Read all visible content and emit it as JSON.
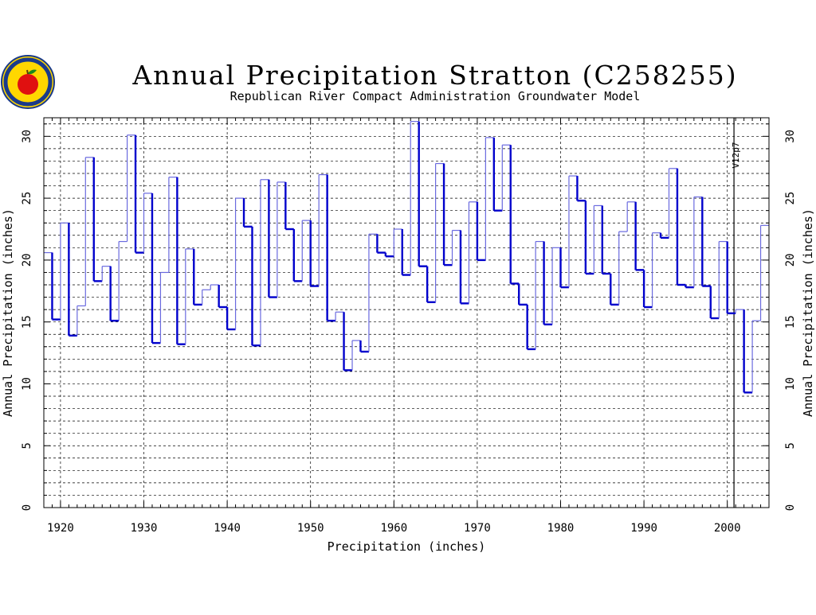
{
  "chart_data": {
    "type": "line",
    "step": true,
    "title": "Annual Precipitation Stratton (C258255)",
    "subtitle": "Republican River Compact Administration Groundwater Model",
    "xlabel": "Precipitation (inches)",
    "ylabel_left": "Annual Precipitation (inches)",
    "ylabel_right": "Annual Precipitation (inches)",
    "annotation": "V12p7",
    "xlim": [
      1918,
      2005
    ],
    "ylim": [
      0,
      31.5
    ],
    "x_ticks": [
      1920,
      1930,
      1940,
      1950,
      1960,
      1970,
      1980,
      1990,
      2000
    ],
    "y_ticks": [
      0,
      5,
      10,
      15,
      20,
      25,
      30
    ],
    "grid": true,
    "colors": {
      "thin_line": "#6a6adf",
      "thick_line": "#0000cc",
      "grid": "#000000",
      "logo_fill": "#ffd700",
      "logo_ring": "#1a3a8a",
      "apple": "#e01010"
    },
    "series": [
      {
        "x": [
          1918,
          1919,
          1920,
          1921,
          1922,
          1923,
          1924,
          1925,
          1926,
          1927,
          1928,
          1929,
          1930,
          1931,
          1932,
          1933,
          1934,
          1935,
          1936,
          1937,
          1938,
          1939,
          1940,
          1941,
          1942,
          1943,
          1944,
          1945,
          1946,
          1947,
          1948,
          1949,
          1950,
          1951,
          1952,
          1953,
          1954,
          1955,
          1956,
          1957,
          1958,
          1959,
          1960,
          1961,
          1962,
          1963,
          1964,
          1965,
          1966,
          1967,
          1968,
          1969,
          1970,
          1971,
          1972,
          1973,
          1974,
          1975,
          1976,
          1977,
          1978,
          1979,
          1980,
          1981,
          1982,
          1983,
          1984,
          1985,
          1986,
          1987,
          1988,
          1989,
          1990,
          1991,
          1992,
          1993,
          1994,
          1995,
          1996,
          1997,
          1998,
          1999,
          2000,
          2001,
          2002,
          2003,
          2004
        ],
        "values": [
          20.6,
          15.2,
          23.0,
          13.9,
          16.3,
          28.3,
          18.3,
          19.5,
          15.1,
          21.5,
          30.1,
          20.6,
          25.4,
          13.3,
          19.0,
          26.7,
          13.2,
          20.9,
          16.4,
          17.6,
          18.0,
          16.2,
          14.4,
          25.0,
          22.7,
          13.1,
          26.5,
          17.0,
          26.3,
          22.5,
          18.3,
          23.2,
          17.9,
          26.9,
          15.1,
          15.8,
          11.1,
          13.5,
          12.6,
          22.1,
          20.6,
          20.3,
          22.5,
          18.8,
          31.2,
          19.5,
          16.6,
          27.8,
          19.6,
          22.4,
          16.5,
          24.7,
          20.0,
          29.9,
          24.0,
          29.3,
          18.1,
          16.4,
          12.8,
          21.5,
          14.8,
          21.0,
          17.8,
          26.8,
          24.8,
          18.9,
          24.4,
          18.9,
          16.4,
          22.3,
          24.7,
          19.2,
          16.2,
          22.2,
          21.8,
          27.4,
          18.0,
          17.8,
          25.1,
          17.9,
          15.3,
          21.5,
          15.7,
          16.0,
          9.3,
          15.1,
          22.8
        ]
      }
    ]
  }
}
